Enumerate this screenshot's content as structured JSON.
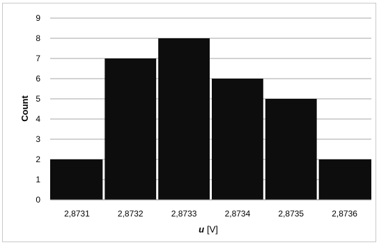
{
  "chart_data": {
    "type": "bar",
    "categories": [
      "2,8731",
      "2,8732",
      "2,8733",
      "2,8734",
      "2,8735",
      "2,8736"
    ],
    "values": [
      2,
      7,
      8,
      6,
      5,
      2
    ],
    "xlabel_symbol": "u",
    "xlabel_unit": "[V]",
    "ylabel": "Count",
    "ylim": [
      0,
      9
    ],
    "yticks": [
      "0",
      "1",
      "2",
      "3",
      "4",
      "5",
      "6",
      "7",
      "8",
      "9"
    ],
    "grid": true,
    "bar_color": "#0d0d0d",
    "grid_color": "#a6a6a6"
  }
}
